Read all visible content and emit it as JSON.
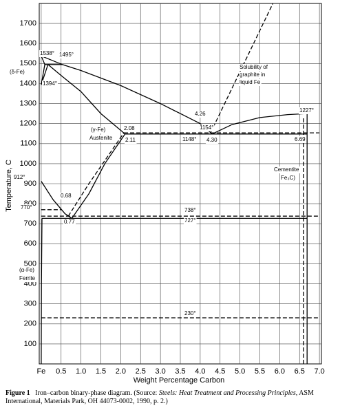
{
  "chart_data": {
    "type": "line",
    "xlabel": "Weight Percentage Carbon",
    "ylabel": "Temperature, C",
    "xlim": [
      -0.05,
      7.05
    ],
    "ylim": [
      0,
      1800
    ],
    "xticks": [
      {
        "value": 0,
        "label": "Fe"
      },
      0.5,
      {
        "value": 1,
        "label": "1.0"
      },
      1.5,
      {
        "value": 2,
        "label": "2.0"
      },
      2.5,
      {
        "value": 3,
        "label": "3.0"
      },
      3.5,
      {
        "value": 4,
        "label": "4.0"
      },
      4.5,
      {
        "value": 5,
        "label": "5.0"
      },
      5.5,
      {
        "value": 6,
        "label": "6.0"
      },
      6.5,
      {
        "value": 7,
        "label": "7.0"
      }
    ],
    "yticks": [
      100,
      200,
      300,
      400,
      500,
      600,
      700,
      800,
      900,
      1000,
      1100,
      1200,
      1300,
      1400,
      1500,
      1600,
      1700
    ],
    "grid": true,
    "color": "#000000",
    "series": [
      {
        "x": [
          0,
          0.53,
          1,
          2,
          3,
          3.5,
          4,
          4.3
        ],
        "values": [
          1538,
          1495,
          1465,
          1390,
          1300,
          1250,
          1200,
          1148
        ],
        "style": "solid"
      },
      {
        "x": [
          4.3,
          4.8,
          5.5,
          6.2,
          6.69
        ],
        "values": [
          1148,
          1195,
          1230,
          1245,
          1250
        ],
        "style": "solid"
      },
      {
        "x": [
          4.26,
          5.83
        ],
        "values": [
          1154,
          1800
        ],
        "style": "dashed"
      },
      {
        "x": [
          0,
          0.09,
          0
        ],
        "values": [
          1538,
          1495,
          1394
        ],
        "style": "solid"
      },
      {
        "x": [
          0.09,
          0.53
        ],
        "values": [
          1495,
          1495
        ],
        "style": "solid"
      },
      {
        "x": [
          0,
          0.17
        ],
        "values": [
          1394,
          1495
        ],
        "style": "solid"
      },
      {
        "x": [
          0.17,
          0.5,
          1,
          1.5,
          2.11
        ],
        "values": [
          1495,
          1440,
          1360,
          1250,
          1148
        ],
        "style": "solid"
      },
      {
        "x": [
          0.77,
          1.2,
          1.6,
          2.11
        ],
        "values": [
          727,
          850,
          1000,
          1148
        ],
        "style": "solid"
      },
      {
        "x": [
          0.68,
          1.2,
          2.08
        ],
        "values": [
          738,
          900,
          1154
        ],
        "style": "dashed"
      },
      {
        "x": [
          0,
          0.3,
          0.6,
          0.77
        ],
        "values": [
          912,
          820,
          750,
          727
        ],
        "style": "solid"
      },
      {
        "x": [
          0,
          0.5
        ],
        "values": [
          770,
          770
        ],
        "style": "dashed"
      },
      {
        "x": [
          2.11,
          6.69
        ],
        "values": [
          1148,
          1148
        ],
        "style": "solid"
      },
      {
        "x": [
          2.08,
          7
        ],
        "values": [
          1154,
          1154
        ],
        "style": "dashed"
      },
      {
        "x": [
          0.02,
          6.69
        ],
        "values": [
          727,
          727
        ],
        "style": "solid"
      },
      {
        "x": [
          0,
          7
        ],
        "values": [
          738,
          738
        ],
        "style": "dashed"
      },
      {
        "x": [
          0,
          7
        ],
        "values": [
          230,
          230
        ],
        "style": "dashed"
      },
      {
        "x": [
          6.69,
          6.69
        ],
        "values": [
          0,
          1250
        ],
        "style": "solid"
      },
      {
        "x": [
          6.6,
          6.6
        ],
        "values": [
          0,
          1227
        ],
        "style": "dashed"
      },
      {
        "x": [
          0.02,
          0.005,
          0
        ],
        "values": [
          727,
          400,
          0
        ],
        "style": "solid"
      }
    ],
    "annotations": [
      "1538°",
      "1495°",
      "(δ-Fe)",
      "1394°",
      "Solubility of",
      "graphite in",
      "liquid Fe",
      "4.26",
      "1227°",
      "(γ-Fe)",
      "Austenite",
      "2.08",
      "1154°",
      "2.11",
      "1148°",
      "4.30",
      "6.69",
      "912°",
      "0.68",
      "770°",
      "0.77",
      "738°",
      "727°",
      "Cementite",
      "Fe₃C)",
      "(α-Fe)",
      "Ferrite",
      "230°"
    ],
    "caption": {
      "label": "Figure 1",
      "text": "Iron–carbon binary-phase diagram. (Source: ",
      "source_title": "Steels: Heat Treatment and Processing Principles",
      "source_rest": ", ASM International, Materials Park, OH 44073-0002, 1990, p. 2.)"
    }
  }
}
